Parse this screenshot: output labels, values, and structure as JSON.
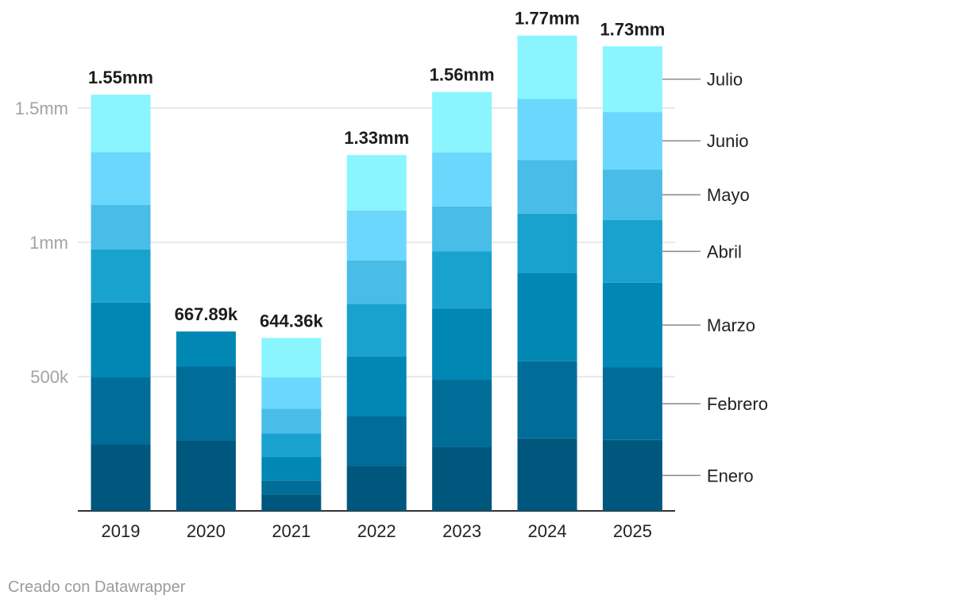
{
  "chart_data": {
    "type": "bar",
    "stacked": true,
    "title": "",
    "xlabel": "",
    "ylabel": "",
    "ylim": [
      0,
      1800000
    ],
    "categories": [
      "2019",
      "2020",
      "2021",
      "2022",
      "2023",
      "2024",
      "2025"
    ],
    "y_ticks": [
      {
        "value": 500000,
        "label": "500k"
      },
      {
        "value": 1000000,
        "label": "1mm"
      },
      {
        "value": 1500000,
        "label": "1.5mm"
      }
    ],
    "series": [
      {
        "name": "Enero",
        "color": "#00577d",
        "values": [
          247000,
          262000,
          61000,
          167000,
          238000,
          270000,
          264000
        ]
      },
      {
        "name": "Febrero",
        "color": "#006d98",
        "values": [
          250000,
          275000,
          52000,
          185000,
          250000,
          287000,
          270000
        ]
      },
      {
        "name": "Marzo",
        "color": "#0087b3",
        "values": [
          279000,
          131000,
          88000,
          224000,
          266000,
          330000,
          316000
        ]
      },
      {
        "name": "Abril",
        "color": "#1aa2cf",
        "values": [
          198000,
          0,
          88000,
          195000,
          212000,
          220000,
          233000
        ]
      },
      {
        "name": "Mayo",
        "color": "#48bde8",
        "values": [
          165000,
          0,
          92000,
          162000,
          168000,
          200000,
          188000
        ]
      },
      {
        "name": "Junio",
        "color": "#6cd7fd",
        "values": [
          197000,
          0,
          116000,
          186000,
          201000,
          227000,
          214000
        ]
      },
      {
        "name": "Julio",
        "color": "#8af5fe",
        "values": [
          214000,
          0,
          147000,
          206000,
          225000,
          236000,
          245000
        ]
      }
    ],
    "totals": [
      "1.55mm",
      "667.89k",
      "644.36k",
      "1.33mm",
      "1.56mm",
      "1.77mm",
      "1.73mm"
    ],
    "gridlines": true,
    "legend": "right, aligned with last bar"
  },
  "footer": {
    "credit": "Creado con Datawrapper"
  }
}
